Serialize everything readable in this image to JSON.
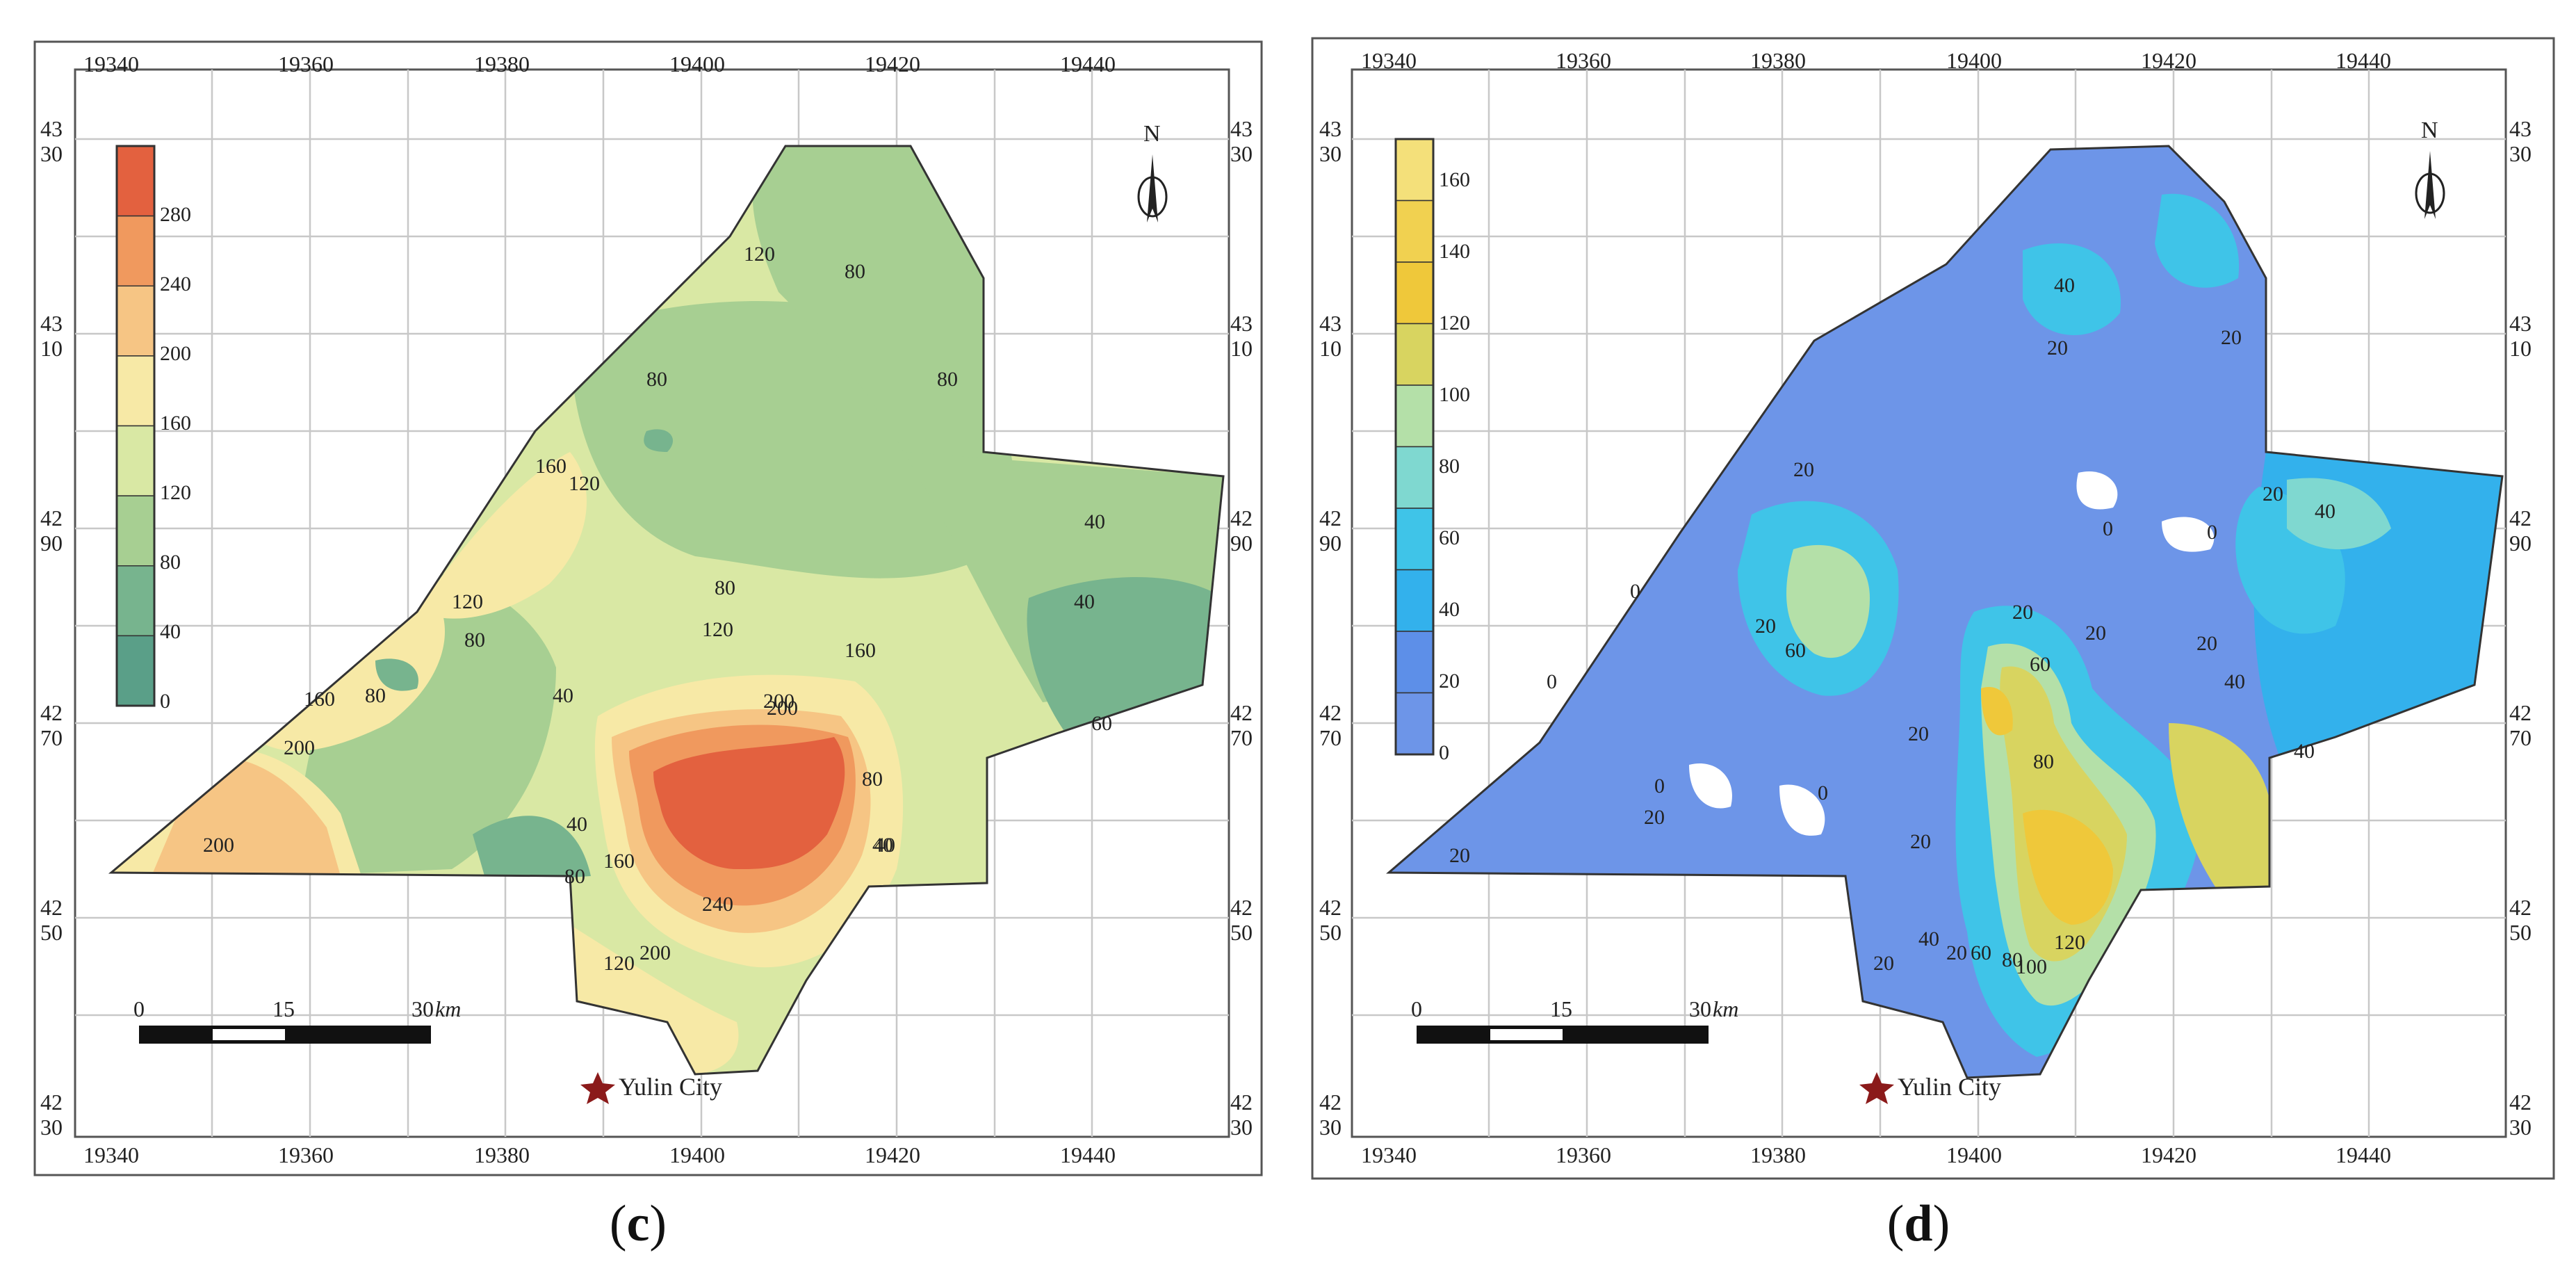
{
  "panels": [
    {
      "id": "c",
      "caption_letter": "c",
      "x_ticks": [
        "19340",
        "19360",
        "19380",
        "19400",
        "19420",
        "19440"
      ],
      "y_ticks": [
        {
          "top": "43",
          "bottom": "30"
        },
        {
          "top": "43",
          "bottom": "10"
        },
        {
          "top": "42",
          "bottom": "90"
        },
        {
          "top": "42",
          "bottom": "70"
        },
        {
          "top": "42",
          "bottom": "50"
        },
        {
          "top": "42",
          "bottom": "30"
        }
      ],
      "legend": {
        "labels": [
          "280",
          "240",
          "200",
          "160",
          "120",
          "80",
          "40",
          "0"
        ],
        "colors": [
          "#e3613f",
          "#f0995e",
          "#f6c584",
          "#f7e9a6",
          "#d9e8a4",
          "#a7cf92",
          "#77b48e",
          "#5a9f88"
        ]
      },
      "contour_labels": [
        "120",
        "80",
        "80",
        "80",
        "160",
        "120",
        "120",
        "80",
        "80",
        "40",
        "40",
        "120",
        "200",
        "160",
        "40",
        "80",
        "160",
        "40",
        "80",
        "160",
        "200",
        "200",
        "200",
        "240",
        "200",
        "120",
        "40",
        "60",
        "40",
        "80"
      ],
      "north_label": "N",
      "scale": {
        "labels": [
          "0",
          "15",
          "30"
        ],
        "unit": "km"
      },
      "city_label": "Yulin City",
      "colors": {
        "area_base": "#a7cf92",
        "outline": "#333333",
        "star": "#8b1a1a",
        "grid": "#c8c8c8"
      }
    },
    {
      "id": "d",
      "caption_letter": "d",
      "x_ticks": [
        "19340",
        "19360",
        "19380",
        "19400",
        "19420",
        "19440"
      ],
      "y_ticks": [
        {
          "top": "43",
          "bottom": "30"
        },
        {
          "top": "43",
          "bottom": "10"
        },
        {
          "top": "42",
          "bottom": "90"
        },
        {
          "top": "42",
          "bottom": "70"
        },
        {
          "top": "42",
          "bottom": "50"
        },
        {
          "top": "42",
          "bottom": "30"
        }
      ],
      "legend": {
        "labels": [
          "160",
          "140",
          "120",
          "100",
          "80",
          "60",
          "40",
          "20",
          "0"
        ],
        "colors": [
          "#f4e07a",
          "#f1d150",
          "#efc83a",
          "#d8d460",
          "#b4e0a8",
          "#7fd8d0",
          "#3fc4e8",
          "#33b1ec",
          "#5d8fe8",
          "#6d95e8"
        ]
      },
      "contour_labels": [
        "40",
        "20",
        "20",
        "20",
        "40",
        "20",
        "0",
        "0",
        "0",
        "20",
        "60",
        "20",
        "60",
        "20",
        "20",
        "40",
        "40",
        "0",
        "0",
        "20",
        "20",
        "20",
        "80",
        "20",
        "40",
        "60",
        "80",
        "100",
        "120",
        "20",
        "0",
        "20"
      ],
      "north_label": "N",
      "scale": {
        "labels": [
          "0",
          "15",
          "30"
        ],
        "unit": "km"
      },
      "city_label": "Yulin City",
      "colors": {
        "area_base": "#6d95e8",
        "outline": "#333333",
        "star": "#8b1a1a",
        "grid": "#c8c8c8"
      }
    }
  ]
}
